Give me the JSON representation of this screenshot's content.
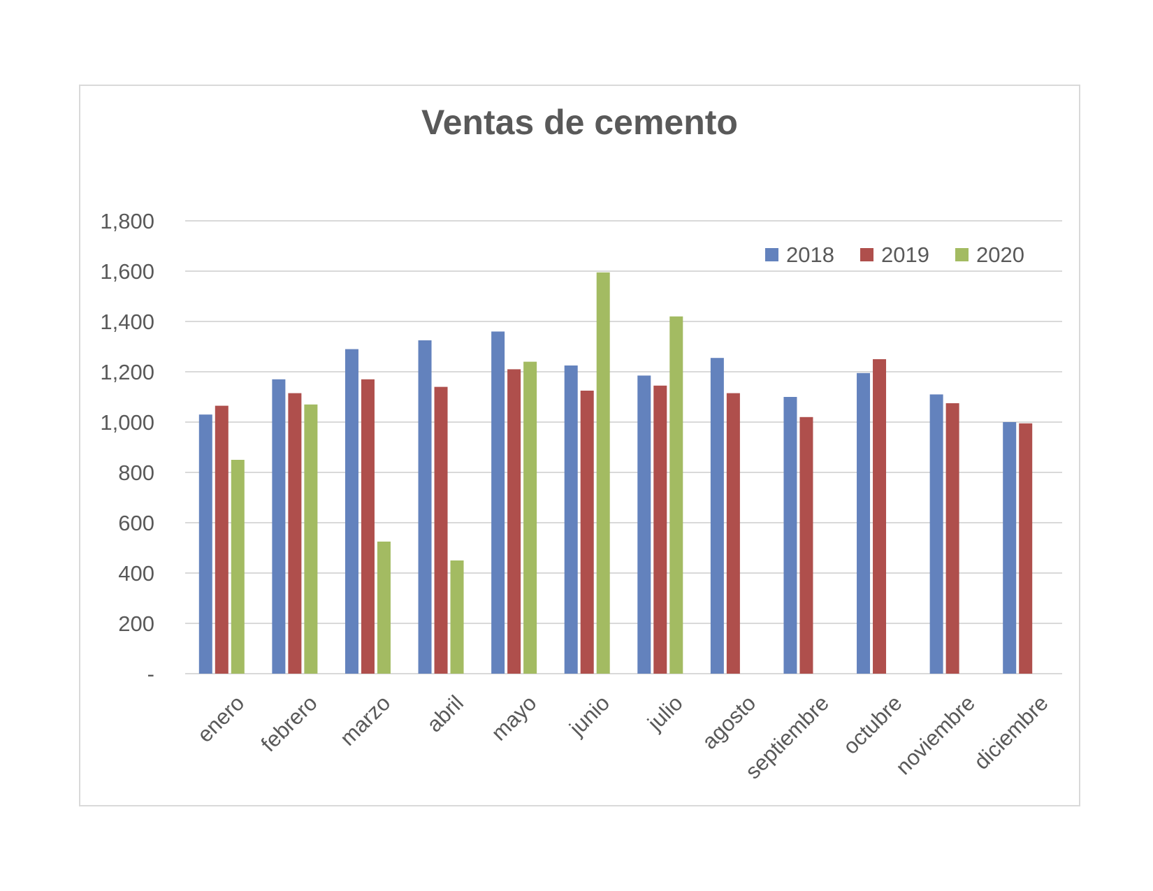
{
  "chart_data": {
    "type": "bar",
    "title": "Ventas de cemento",
    "xlabel": "",
    "ylabel": "",
    "categories": [
      "enero",
      "febrero",
      "marzo",
      "abril",
      "mayo",
      "junio",
      "julio",
      "agosto",
      "septiembre",
      "octubre",
      "noviembre",
      "diciembre"
    ],
    "series": [
      {
        "name": "2018",
        "color": "#6382BD",
        "values": [
          1030,
          1170,
          1290,
          1325,
          1360,
          1225,
          1185,
          1255,
          1100,
          1195,
          1110,
          1000
        ]
      },
      {
        "name": "2019",
        "color": "#AF4F4C",
        "values": [
          1065,
          1115,
          1170,
          1140,
          1210,
          1125,
          1145,
          1115,
          1020,
          1250,
          1075,
          995
        ]
      },
      {
        "name": "2020",
        "color": "#A3BB62",
        "values": [
          850,
          1070,
          525,
          450,
          1240,
          1595,
          1420,
          null,
          null,
          null,
          null,
          null
        ]
      }
    ],
    "ylim": [
      0,
      1800
    ],
    "yticks": [
      0,
      200,
      400,
      600,
      800,
      1000,
      1200,
      1400,
      1600,
      1800
    ],
    "ytick_labels": [
      "-",
      "200",
      "400",
      "600",
      "800",
      "1,000",
      "1,200",
      "1,400",
      "1,600",
      "1,800"
    ],
    "grid": true,
    "legend_position": "top-right"
  }
}
